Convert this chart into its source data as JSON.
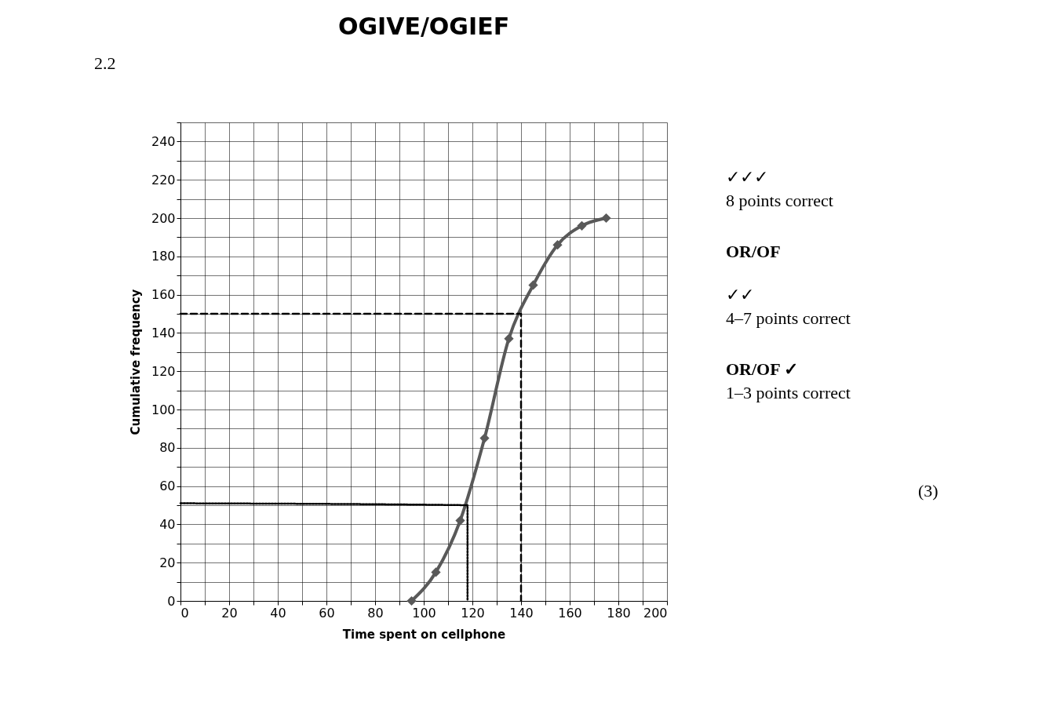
{
  "chart_data": {
    "type": "line",
    "title": "OGIVE/OGIEF",
    "xlabel": "Time spent on cellphone",
    "ylabel": "Cumulative frequency",
    "series": [
      {
        "color": "#595959",
        "marker": "diamond",
        "line_style": "solid",
        "x": [
          95,
          105,
          115,
          125,
          135,
          145,
          155,
          165,
          175
        ],
        "values": [
          0,
          15,
          42,
          85,
          137,
          165,
          186,
          196,
          200
        ]
      },
      {
        "color": "#000000",
        "marker": "none",
        "line_style": "dashed",
        "x": [
          0,
          140,
          140
        ],
        "values": [
          150,
          150,
          0
        ]
      },
      {
        "color": "#000000",
        "marker": "none",
        "line_style": "dotted",
        "x": [
          0,
          118,
          118
        ],
        "values": [
          51,
          50,
          0
        ]
      }
    ],
    "xlim": [
      0,
      200
    ],
    "xticks": [
      0,
      {
        "value": 10,
        "label": null
      },
      20,
      {
        "value": 30,
        "label": null
      },
      40,
      {
        "value": 50,
        "label": null
      },
      60,
      {
        "value": 70,
        "label": null
      },
      80,
      {
        "value": 90,
        "label": null
      },
      100,
      {
        "value": 110,
        "label": null
      },
      120,
      {
        "value": 130,
        "label": null
      },
      140,
      {
        "value": 150,
        "label": null
      },
      160,
      {
        "value": 170,
        "label": null
      },
      180,
      {
        "value": 190,
        "label": null
      },
      200
    ],
    "ylim": [
      0,
      250
    ],
    "yticks": [
      0,
      {
        "value": 10,
        "label": null
      },
      20,
      {
        "value": 30,
        "label": null
      },
      40,
      {
        "value": 50,
        "label": null
      },
      60,
      {
        "value": 70,
        "label": null
      },
      80,
      {
        "value": 90,
        "label": null
      },
      100,
      {
        "value": 110,
        "label": null
      },
      120,
      {
        "value": 130,
        "label": null
      },
      140,
      {
        "value": 150,
        "label": null
      },
      160,
      {
        "value": 170,
        "label": null
      },
      180,
      {
        "value": 190,
        "label": null
      },
      200,
      {
        "value": 210,
        "label": null
      },
      220,
      {
        "value": 230,
        "label": null
      },
      240,
      {
        "value": 250,
        "label": null
      }
    ],
    "grid": true,
    "annotations": [
      "2.2",
      "✓✓✓",
      "8 points correct",
      "OR/OF",
      "✓✓",
      "4–7 points correct",
      "OR/OF ✓",
      "1–3 points correct",
      "(3)"
    ]
  }
}
